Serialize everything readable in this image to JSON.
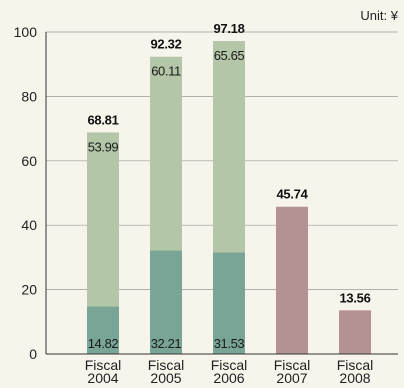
{
  "chart_data": {
    "type": "bar",
    "stacked": true,
    "unit_label": "Unit: ¥",
    "categories": [
      [
        "Fiscal",
        "2004"
      ],
      [
        "Fiscal",
        "2005"
      ],
      [
        "Fiscal",
        "2006"
      ],
      [
        "Fiscal",
        "2007"
      ],
      [
        "Fiscal",
        "2008"
      ]
    ],
    "series": [
      {
        "values": [
          14.82,
          32.21,
          31.53,
          null,
          null
        ],
        "color": "#79a596"
      },
      {
        "values": [
          53.99,
          60.11,
          65.65,
          null,
          null
        ],
        "color": "#b3c6a7"
      },
      {
        "values": [
          null,
          null,
          null,
          45.74,
          13.56
        ],
        "color": "#b39292"
      }
    ],
    "bar_labels": {
      "bottom": [
        "14.82",
        "32.21",
        "31.53",
        "",
        ""
      ],
      "top": [
        "53.99",
        "60.11",
        "65.65",
        "",
        ""
      ],
      "total": [
        "68.81",
        "92.32",
        "97.18",
        "45.74",
        "13.56"
      ]
    },
    "totals": [
      68.81,
      92.32,
      97.18,
      45.74,
      13.56
    ],
    "yticks": [
      0,
      20,
      40,
      60,
      80,
      100
    ],
    "ylim": [
      0,
      100
    ],
    "grid": true,
    "grid_color": "#9a9a9a",
    "axis_color": "#333333"
  }
}
